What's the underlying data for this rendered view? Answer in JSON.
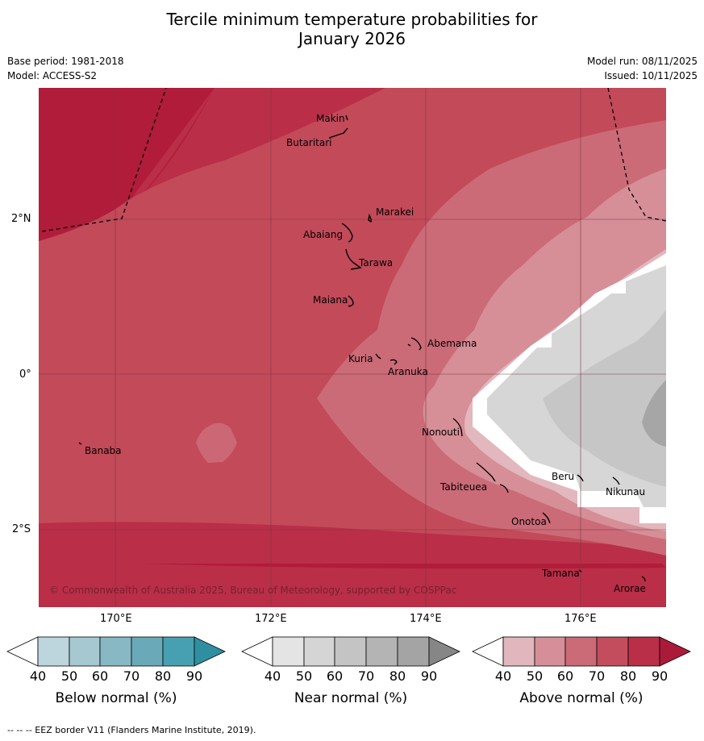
{
  "title_line1": "Tercile minimum temperature probabilities for",
  "title_line2": "January 2026",
  "base_period": "Base period: 1981-2018",
  "model": "Model: ACCESS-S2",
  "model_run": "Model run: 08/11/2025",
  "issued": "Issued: 10/11/2025",
  "copyright": "© Commonwealth of Australia 2025, Bureau of Meteorology, supported by COSPPac",
  "footer": "--  --  -- EEZ border V11 (Flanders Marine Institute, 2019).",
  "map": {
    "lon_ticks": [
      "170°E",
      "172°E",
      "174°E",
      "176°E"
    ],
    "lat_ticks": [
      "2°N",
      "0°",
      "2°S"
    ],
    "islands": [
      {
        "name": "Makin",
        "lon": 172.95,
        "lat": 3.28
      },
      {
        "name": "Butaritari",
        "lon": 172.78,
        "lat": 3.08
      },
      {
        "name": "Marakei",
        "lon": 173.28,
        "lat": 2.02
      },
      {
        "name": "Abaiang",
        "lon": 172.92,
        "lat": 1.83
      },
      {
        "name": "Tarawa",
        "lon": 173.02,
        "lat": 1.42
      },
      {
        "name": "Maiana",
        "lon": 173.02,
        "lat": 0.93
      },
      {
        "name": "Abemama",
        "lon": 173.85,
        "lat": 0.38
      },
      {
        "name": "Kuria",
        "lon": 173.4,
        "lat": 0.22
      },
      {
        "name": "Aranuka",
        "lon": 173.6,
        "lat": 0.17
      },
      {
        "name": "Banaba",
        "lon": 169.53,
        "lat": -0.87
      },
      {
        "name": "Nonouti",
        "lon": 174.4,
        "lat": -0.68
      },
      {
        "name": "Tabiteuea",
        "lon": 174.95,
        "lat": -1.35
      },
      {
        "name": "Beru",
        "lon": 175.98,
        "lat": -1.33
      },
      {
        "name": "Nikunau",
        "lon": 176.45,
        "lat": -1.38
      },
      {
        "name": "Onotoa",
        "lon": 175.55,
        "lat": -1.85
      },
      {
        "name": "Tamana",
        "lon": 176.0,
        "lat": -2.5
      },
      {
        "name": "Arorae",
        "lon": 176.8,
        "lat": -2.65
      }
    ]
  },
  "colorbars": [
    {
      "name": "below-normal",
      "label": "Below normal (%)",
      "ticks": [
        "40",
        "50",
        "60",
        "70",
        "80",
        "90"
      ],
      "colors": [
        "#ffffff",
        "#bdd5dd",
        "#a5c8d1",
        "#88b8c4",
        "#6aaab8",
        "#47a0b1",
        "#2f8fa1"
      ]
    },
    {
      "name": "near-normal",
      "label": "Near normal (%)",
      "ticks": [
        "40",
        "50",
        "60",
        "70",
        "80",
        "90"
      ],
      "colors": [
        "#ffffff",
        "#e4e4e4",
        "#d5d5d5",
        "#c4c4c4",
        "#b4b4b4",
        "#a4a4a4",
        "#868686"
      ]
    },
    {
      "name": "above-normal",
      "label": "Above normal (%)",
      "ticks": [
        "40",
        "50",
        "60",
        "70",
        "80",
        "90"
      ],
      "colors": [
        "#ffffff",
        "#e2b6bd",
        "#d68f98",
        "#cb6b77",
        "#c34d5c",
        "#b92f48",
        "#ac1a3a"
      ]
    }
  ]
}
